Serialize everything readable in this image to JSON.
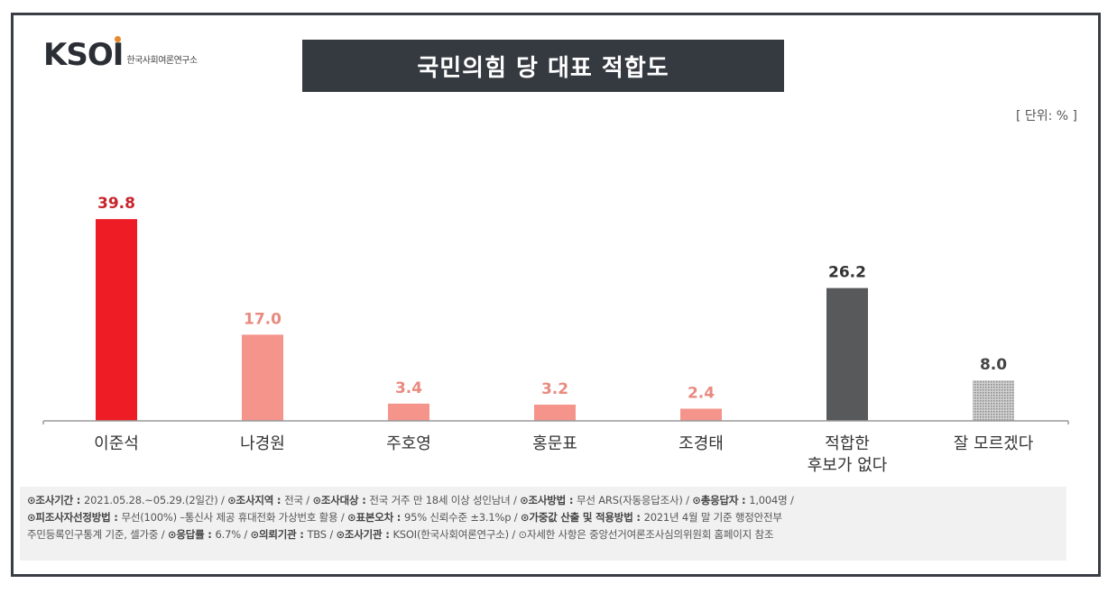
{
  "logo": {
    "mark": "KSOI",
    "subtitle": "한국사회여론연구소"
  },
  "title": "국민의힘 당 대표 적합도",
  "unit": "[ 단위: % ]",
  "colors": {
    "red": "#ee1c25",
    "pink": "#f4948a",
    "dark": "#58595b",
    "gray": "#b5b5b5"
  },
  "chart_data": {
    "type": "bar",
    "categories": [
      "이준석",
      "나경원",
      "주호영",
      "홍문표",
      "조경태",
      "적합한\n후보가 없다",
      "잘 모르겠다"
    ],
    "values": [
      39.8,
      17.0,
      3.4,
      3.2,
      2.4,
      26.2,
      8.0
    ],
    "value_labels": [
      "39.8",
      "17.0",
      "3.4",
      "3.2",
      "2.4",
      "26.2",
      "8.0"
    ],
    "bar_colors": [
      "#ee1c25",
      "#f4948a",
      "#f4948a",
      "#f4948a",
      "#f4948a",
      "#58595b",
      "#b5b5b5"
    ],
    "label_colors": [
      "#c8242b",
      "#e98a80",
      "#e98a80",
      "#e98a80",
      "#e98a80",
      "#333333",
      "#444444"
    ],
    "ylim": [
      0,
      40
    ],
    "grid": false
  },
  "footer": [
    [
      {
        "k": "⊙조사기간 : ",
        "v": "2021.05.28.~05.29.(2일간)  / "
      },
      {
        "k": "⊙조사지역 : ",
        "v": "전국 / "
      },
      {
        "k": "⊙조사대상 : ",
        "v": "전국 거주 만 18세 이상 성인남녀 / "
      },
      {
        "k": "⊙조사방법 : ",
        "v": "무선 ARS(자동응답조사) / "
      },
      {
        "k": "⊙총응답자 : ",
        "v": "1,004명 /"
      }
    ],
    [
      {
        "k": "⊙피조사자선정방법 : ",
        "v": "무선(100%) –통신사 제공 휴대전화 가상번호 활용 / "
      },
      {
        "k": "⊙표본오차 : ",
        "v": "95% 신뢰수준 ±3.1%p / "
      },
      {
        "k": "⊙가중값 산출 및 적용방법 : ",
        "v": "2021년 4월 말 기준 행정안전부"
      }
    ],
    [
      {
        "k": "",
        "v": "주민등록인구통계 기준, 셀가중 / "
      },
      {
        "k": "⊙응답률 : ",
        "v": "6.7% / "
      },
      {
        "k": "⊙의뢰기관 : ",
        "v": "TBS / "
      },
      {
        "k": "⊙조사기관 : ",
        "v": "KSOI(한국사회여론연구소) / "
      },
      {
        "k": "",
        "v": "⊙자세한 사항은 중앙선거여론조사심의위원회 홈페이지 참조"
      }
    ]
  ]
}
